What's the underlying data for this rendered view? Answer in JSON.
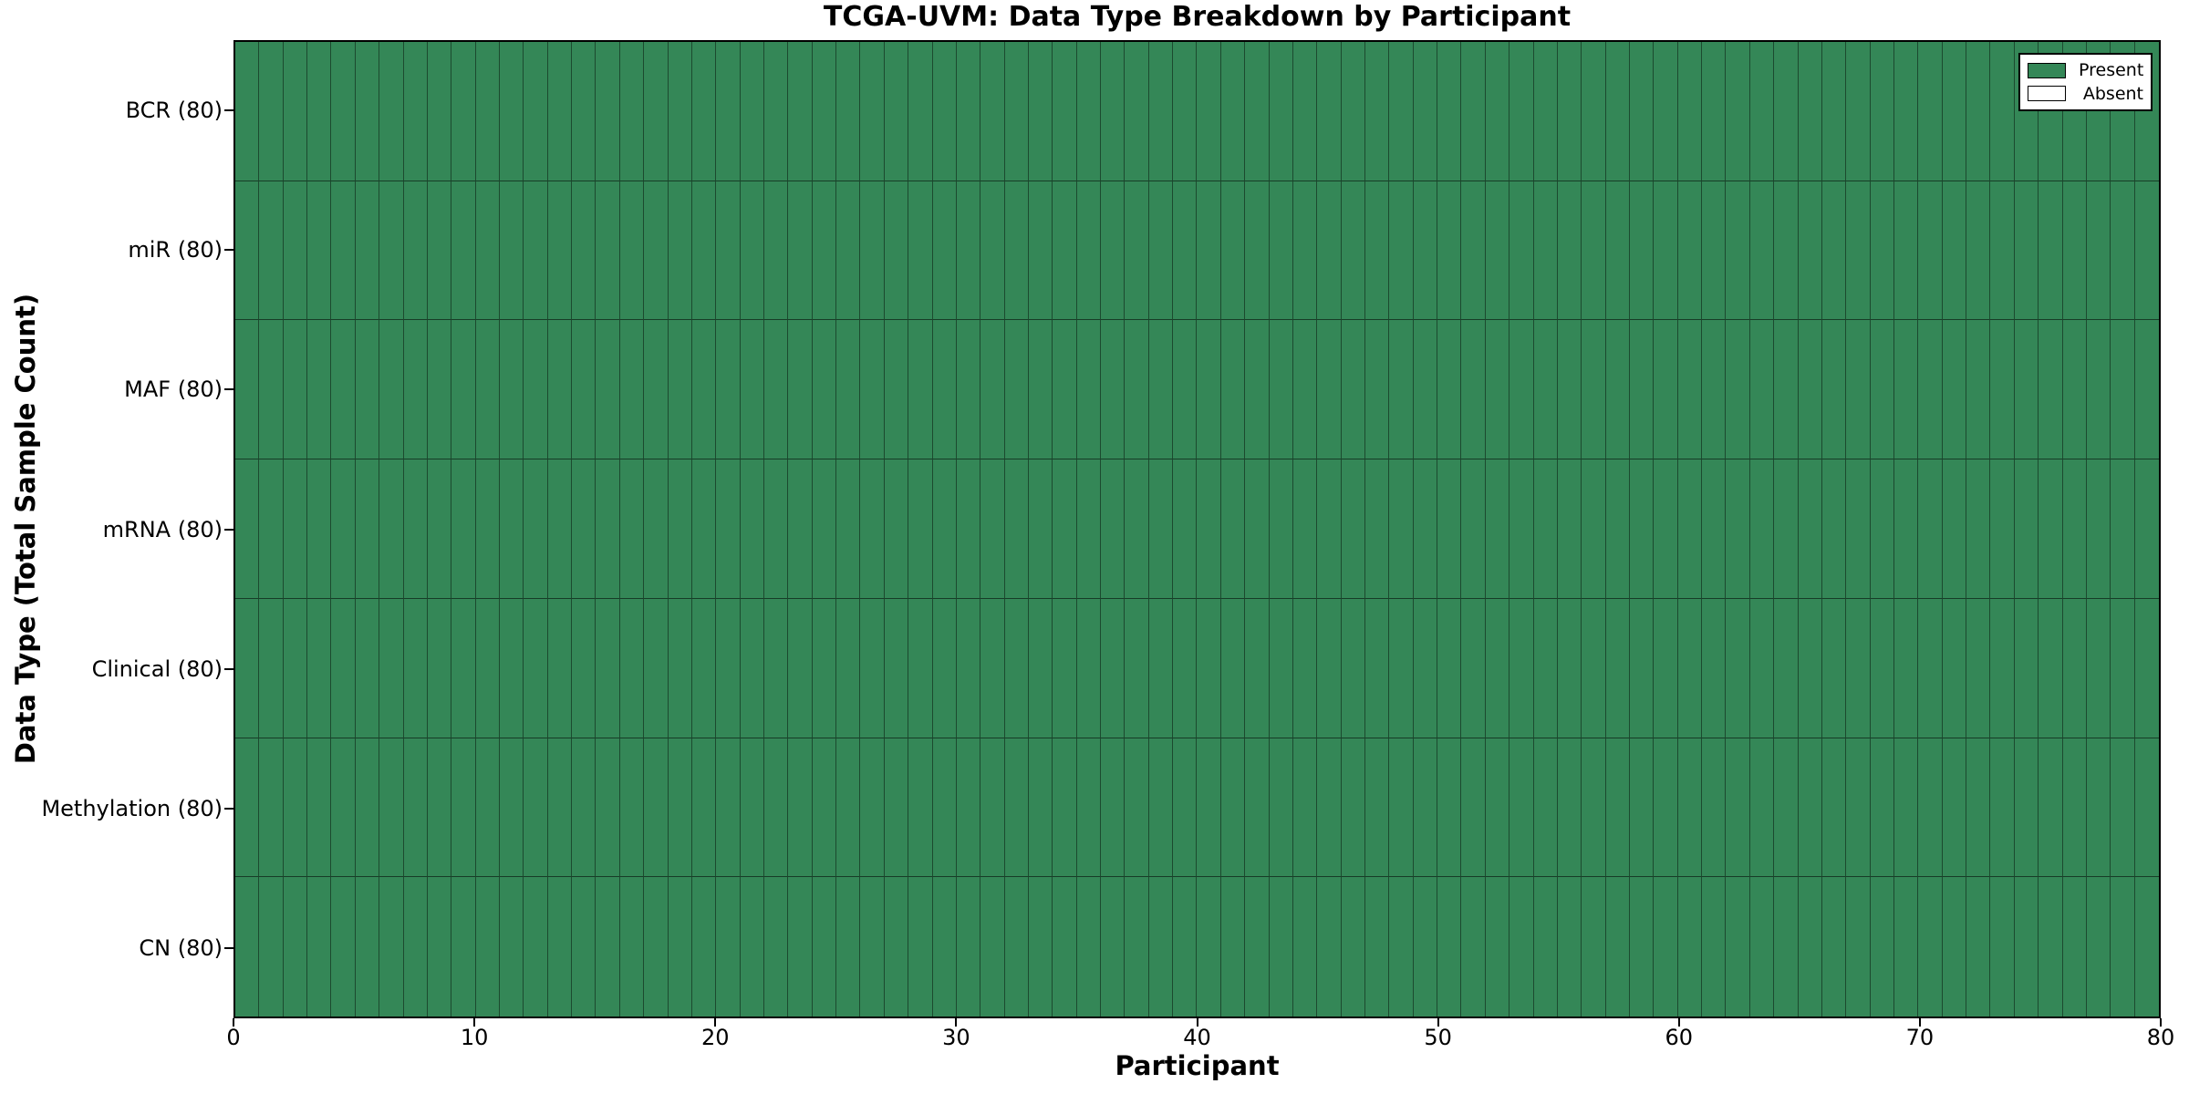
{
  "chart_data": {
    "type": "heatmap",
    "title": "TCGA-UVM: Data Type Breakdown by Participant",
    "xlabel": "Participant",
    "ylabel": "Data Type (Total Sample Count)",
    "x_axis": {
      "min": 0,
      "max": 80,
      "ticks": [
        0,
        10,
        20,
        30,
        40,
        50,
        60,
        70,
        80
      ]
    },
    "n_participants": 80,
    "rows": [
      {
        "label": "BCR (80)",
        "name": "BCR",
        "total": 80,
        "present": 80
      },
      {
        "label": "miR (80)",
        "name": "miR",
        "total": 80,
        "present": 80
      },
      {
        "label": "MAF (80)",
        "name": "MAF",
        "total": 80,
        "present": 80
      },
      {
        "label": "mRNA (80)",
        "name": "mRNA",
        "total": 80,
        "present": 80
      },
      {
        "label": "Clinical (80)",
        "name": "Clinical",
        "total": 80,
        "present": 80
      },
      {
        "label": "Methylation (80)",
        "name": "Methylation",
        "total": 80,
        "present": 80
      },
      {
        "label": "CN (80)",
        "name": "CN",
        "total": 80,
        "present": 80
      }
    ],
    "all_cells_present": true,
    "legend": {
      "position": "upper-right",
      "items": [
        {
          "label": "Present",
          "color": "#348757"
        },
        {
          "label": "Absent",
          "color": "#ffffff"
        }
      ]
    },
    "colors": {
      "present": "#348757",
      "absent": "#ffffff",
      "cell_edge": "#000000",
      "spine": "#000000"
    },
    "grid": "cell-borders"
  }
}
